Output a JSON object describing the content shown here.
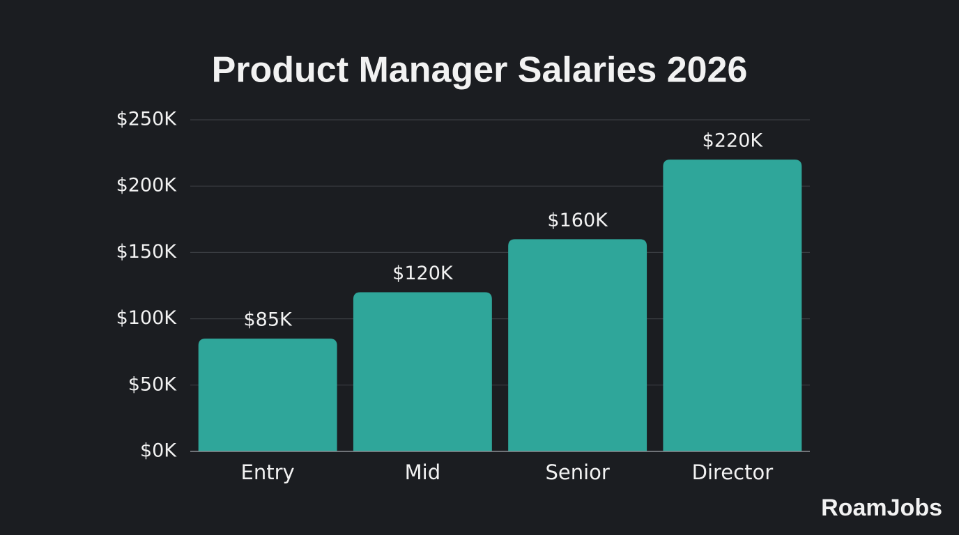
{
  "chart_data": {
    "type": "bar",
    "title": "Product Manager Salaries 2026",
    "categories": [
      "Entry",
      "Mid",
      "Senior",
      "Director"
    ],
    "values": [
      85,
      120,
      160,
      220
    ],
    "value_labels": [
      "$85K",
      "$120K",
      "$160K",
      "$220K"
    ],
    "color": "#2fa69a",
    "ylim": [
      0,
      250
    ],
    "yticks": [
      {
        "value": 0,
        "label": "$0K"
      },
      {
        "value": 50,
        "label": "$50K"
      },
      {
        "value": 100,
        "label": "$100K"
      },
      {
        "value": 150,
        "label": "$150K"
      },
      {
        "value": 200,
        "label": "$200K"
      },
      {
        "value": 250,
        "label": "$250K"
      }
    ],
    "grid": true
  },
  "brand": "RoamJobs"
}
